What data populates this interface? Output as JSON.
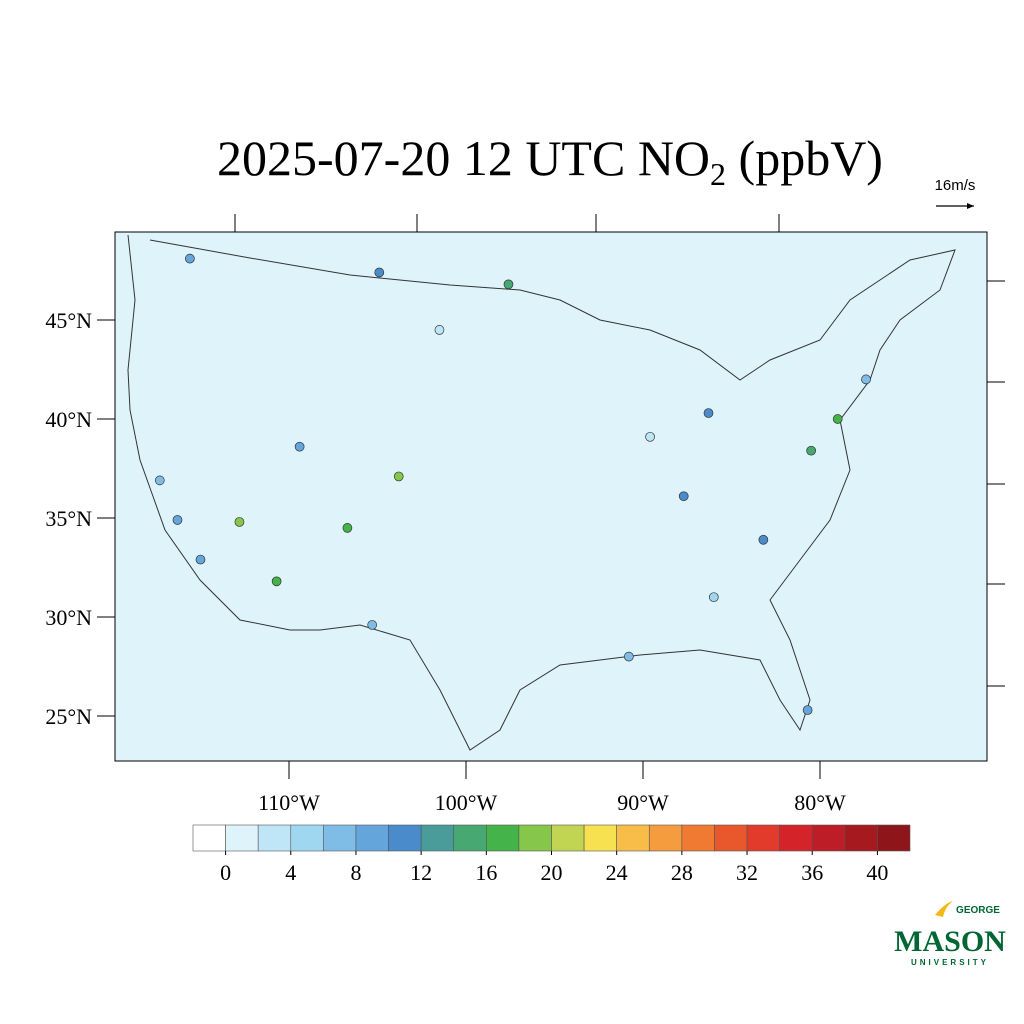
{
  "title": {
    "text": "2025-07-20 12 UTC NO",
    "subscript": "2",
    "suffix": " (ppbV)"
  },
  "reference_vector": "16m/s",
  "lat_ticks": [
    {
      "value": 45,
      "label": "45°N"
    },
    {
      "value": 40,
      "label": "40°N"
    },
    {
      "value": 35,
      "label": "35°N"
    },
    {
      "value": 30,
      "label": "30°N"
    },
    {
      "value": 25,
      "label": "25°N"
    }
  ],
  "lon_ticks": [
    {
      "value": -110,
      "label": "110°W"
    },
    {
      "value": -100,
      "label": "100°W"
    },
    {
      "value": -90,
      "label": "90°W"
    },
    {
      "value": -80,
      "label": "80°W"
    }
  ],
  "colorbar": {
    "lim": [
      -2,
      42
    ],
    "ticks": [
      0,
      4,
      8,
      12,
      16,
      20,
      24,
      28,
      32,
      36,
      40
    ],
    "colors": [
      "#ffffff",
      "#dff3fb",
      "#bfe6f6",
      "#9fd6f0",
      "#80bde6",
      "#64a6dc",
      "#4a8ccb",
      "#4a9c9a",
      "#48a871",
      "#44b34a",
      "#86c64a",
      "#c2d552",
      "#f8e150",
      "#f8bd48",
      "#f59c3e",
      "#f07a32",
      "#e9572c",
      "#e23b2b",
      "#d42329",
      "#bd1d26",
      "#a6191f",
      "#8e1519"
    ]
  },
  "stations": [
    {
      "lon": -115.6,
      "lat": 48.1,
      "value": 8
    },
    {
      "lon": -103.8,
      "lat": 37.1,
      "value": 18
    },
    {
      "lon": -110.7,
      "lat": 31.8,
      "value": 16
    },
    {
      "lon": -112.8,
      "lat": 34.8,
      "value": 18
    },
    {
      "lon": -79.0,
      "lat": 40.0,
      "value": 16
    },
    {
      "lon": -80.5,
      "lat": 38.4,
      "value": 14
    },
    {
      "lon": -83.2,
      "lat": 33.9,
      "value": 10
    },
    {
      "lon": -87.7,
      "lat": 36.1,
      "value": 10
    },
    {
      "lon": -86.3,
      "lat": 40.3,
      "value": 10
    },
    {
      "lon": -116.3,
      "lat": 34.9,
      "value": 8
    },
    {
      "lon": -115.0,
      "lat": 32.9,
      "value": 8
    },
    {
      "lon": -109.4,
      "lat": 38.6,
      "value": 8
    },
    {
      "lon": -97.6,
      "lat": 46.8,
      "value": 14
    },
    {
      "lon": -104.9,
      "lat": 47.4,
      "value": 10
    },
    {
      "lon": -106.7,
      "lat": 34.5,
      "value": 16
    },
    {
      "lon": -89.6,
      "lat": 39.1,
      "value": 2
    },
    {
      "lon": -101.5,
      "lat": 44.5,
      "value": 2
    },
    {
      "lon": -77.4,
      "lat": 42.0,
      "value": 6
    },
    {
      "lon": -80.7,
      "lat": 25.3,
      "value": 8
    },
    {
      "lon": -86.0,
      "lat": 31.0,
      "value": 4
    },
    {
      "lon": -90.8,
      "lat": 28.0,
      "value": 6
    },
    {
      "lon": -117.3,
      "lat": 36.9,
      "value": 6
    },
    {
      "lon": -105.3,
      "lat": 29.6,
      "value": 6
    }
  ],
  "logo": {
    "top": "GEORGE",
    "name": "MASON",
    "bottom": "UNIVERSITY"
  }
}
